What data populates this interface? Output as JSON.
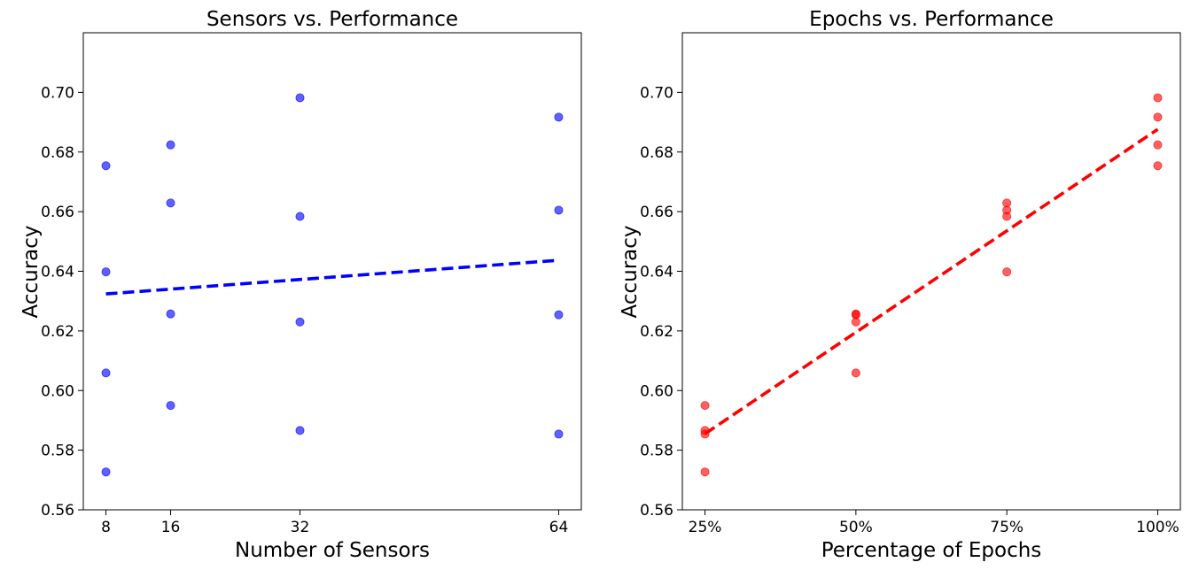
{
  "chart_data": [
    {
      "type": "scatter",
      "title": "Sensors vs. Performance",
      "xlabel": "Number of Sensors",
      "ylabel": "Accuracy",
      "xlim": [
        5.2,
        66.8
      ],
      "ylim": [
        0.56,
        0.72
      ],
      "x_ticks": [
        8,
        16,
        32,
        64
      ],
      "x_tick_labels": [
        "8",
        "16",
        "32",
        "64"
      ],
      "y_ticks": [
        0.56,
        0.58,
        0.6,
        0.62,
        0.64,
        0.66,
        0.68,
        0.7
      ],
      "y_tick_labels": [
        "0.56",
        "0.58",
        "0.60",
        "0.62",
        "0.64",
        "0.66",
        "0.68",
        "0.70"
      ],
      "grid": false,
      "point_color": "#0000ff",
      "line_color": "#0000ff",
      "points": [
        {
          "x": 8,
          "y": 0.5727
        },
        {
          "x": 8,
          "y": 0.6059
        },
        {
          "x": 8,
          "y": 0.6398
        },
        {
          "x": 8,
          "y": 0.6754
        },
        {
          "x": 16,
          "y": 0.595
        },
        {
          "x": 16,
          "y": 0.6257
        },
        {
          "x": 16,
          "y": 0.6629
        },
        {
          "x": 16,
          "y": 0.6824
        },
        {
          "x": 32,
          "y": 0.5866
        },
        {
          "x": 32,
          "y": 0.623
        },
        {
          "x": 32,
          "y": 0.6584
        },
        {
          "x": 32,
          "y": 0.6982
        },
        {
          "x": 64,
          "y": 0.5854
        },
        {
          "x": 64,
          "y": 0.6254
        },
        {
          "x": 64,
          "y": 0.6605
        },
        {
          "x": 64,
          "y": 0.6917
        }
      ],
      "trend_line": {
        "x": [
          8,
          64
        ],
        "y": [
          0.6324,
          0.6437
        ],
        "style": "dashed"
      }
    },
    {
      "type": "scatter",
      "title": "Epochs vs. Performance",
      "xlabel": "Percentage of Epochs",
      "ylabel": "Accuracy",
      "xlim": [
        21.25,
        103.75
      ],
      "ylim": [
        0.56,
        0.72
      ],
      "x_ticks": [
        25,
        50,
        75,
        100
      ],
      "x_tick_labels": [
        "25%",
        "50%",
        "75%",
        "100%"
      ],
      "y_ticks": [
        0.56,
        0.58,
        0.6,
        0.62,
        0.64,
        0.66,
        0.68,
        0.7
      ],
      "y_tick_labels": [
        "0.56",
        "0.58",
        "0.60",
        "0.62",
        "0.64",
        "0.66",
        "0.68",
        "0.70"
      ],
      "grid": false,
      "point_color": "#ff0000",
      "line_color": "#ff0000",
      "points": [
        {
          "x": 25,
          "y": 0.5727
        },
        {
          "x": 25,
          "y": 0.5854
        },
        {
          "x": 25,
          "y": 0.5866
        },
        {
          "x": 25,
          "y": 0.595
        },
        {
          "x": 50,
          "y": 0.6059
        },
        {
          "x": 50,
          "y": 0.623
        },
        {
          "x": 50,
          "y": 0.6254
        },
        {
          "x": 50,
          "y": 0.6257
        },
        {
          "x": 75,
          "y": 0.6398
        },
        {
          "x": 75,
          "y": 0.6584
        },
        {
          "x": 75,
          "y": 0.6605
        },
        {
          "x": 75,
          "y": 0.6629
        },
        {
          "x": 100,
          "y": 0.6754
        },
        {
          "x": 100,
          "y": 0.6824
        },
        {
          "x": 100,
          "y": 0.6917
        },
        {
          "x": 100,
          "y": 0.6982
        }
      ],
      "trend_line": {
        "x": [
          25,
          100
        ],
        "y": [
          0.5855,
          0.6876
        ],
        "style": "dashed"
      }
    }
  ]
}
